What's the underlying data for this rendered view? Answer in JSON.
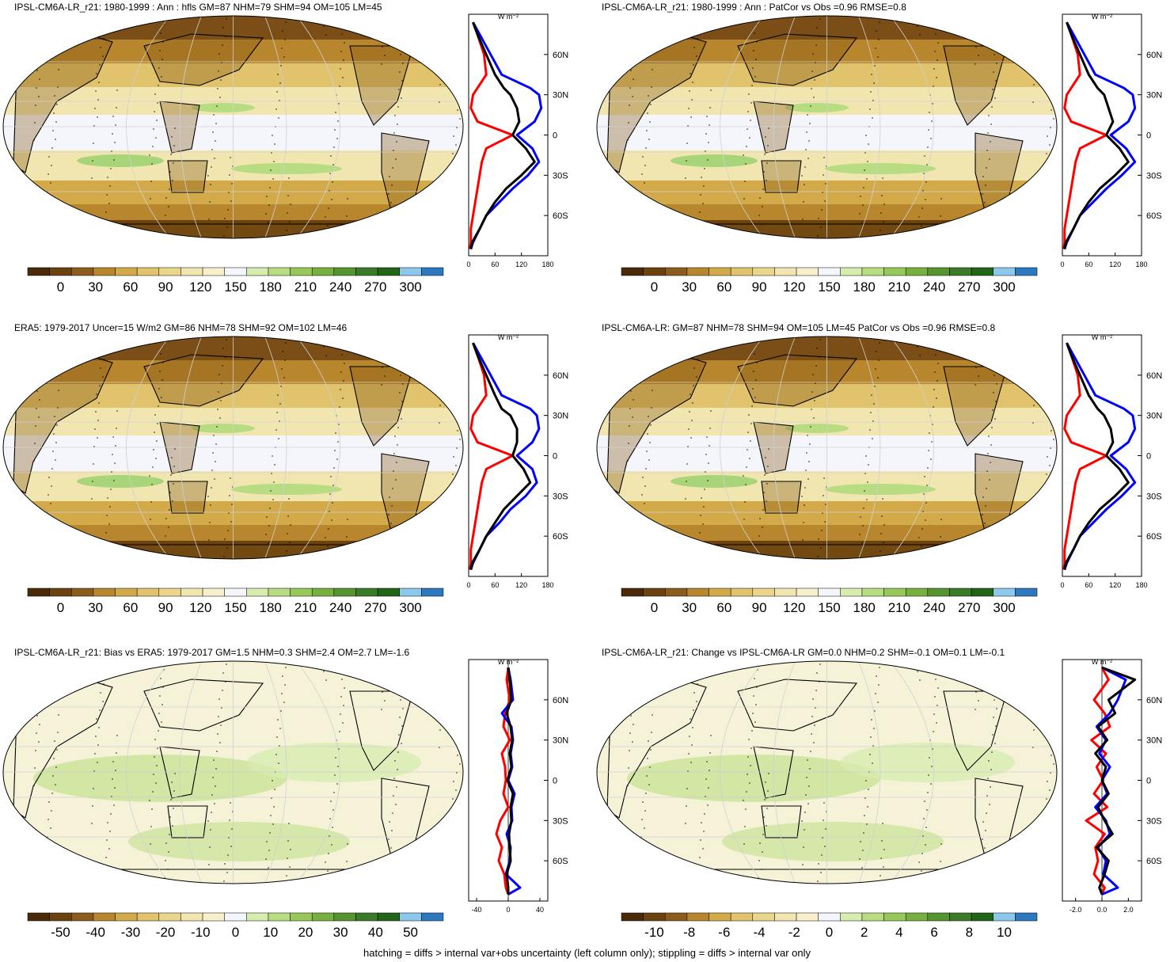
{
  "footer": "hatching = diffs > internal var+obs uncertainty (left column only); stippling = diffs > internal var only",
  "unit_label": "W m⁻²",
  "lat_ticks": [
    "60N",
    "30N",
    "0",
    "30S",
    "60S"
  ],
  "colors": {
    "mean_scale": [
      "#4a2a08",
      "#6b4210",
      "#8c5c1e",
      "#b8862c",
      "#d3aa4a",
      "#e0c36c",
      "#ead58c",
      "#f2e6b0",
      "#f8f0cc",
      "#f4f6fb",
      "#d8ecb0",
      "#b8dc82",
      "#98c85a",
      "#78b040",
      "#559430",
      "#3a7a28",
      "#226418",
      "#8cc8ec",
      "#2e78c0"
    ],
    "model": "#000000",
    "obs_ocean": "#0000ff",
    "obs_land": "#ff0000"
  },
  "panels": [
    {
      "id": "model-mean",
      "title": "IPSL-CM6A-LR_r21: 1980-1999 : Ann : hfls GM=87 NHM=79 SHM=94 OM=105 LM=45",
      "colorbar_labels": [
        "0",
        "30",
        "60",
        "90",
        "120",
        "150",
        "180",
        "210",
        "240",
        "270",
        "300"
      ],
      "zonal_xticks": [
        "0",
        "60",
        "120",
        "180"
      ]
    },
    {
      "id": "model-mean-patcor",
      "title": "IPSL-CM6A-LR_r21: 1980-1999 : Ann : PatCor vs Obs =0.96 RMSE=0.8",
      "colorbar_labels": [
        "0",
        "30",
        "60",
        "90",
        "120",
        "150",
        "180",
        "210",
        "240",
        "270",
        "300"
      ],
      "zonal_xticks": [
        "0",
        "60",
        "120",
        "180"
      ]
    },
    {
      "id": "era5",
      "title": "ERA5: 1979-2017 Uncer=15 W/m2 GM=86 NHM=78 SHM=92 OM=102 LM=46",
      "colorbar_labels": [
        "0",
        "30",
        "60",
        "90",
        "120",
        "150",
        "180",
        "210",
        "240",
        "270",
        "300"
      ],
      "zonal_xticks": [
        "0",
        "60",
        "120",
        "180"
      ]
    },
    {
      "id": "ipsl-ensemble",
      "title": "IPSL-CM6A-LR: GM=87 NHM=78 SHM=94 OM=105 LM=45 PatCor vs Obs =0.96 RMSE=0.8",
      "colorbar_labels": [
        "0",
        "30",
        "60",
        "90",
        "120",
        "150",
        "180",
        "210",
        "240",
        "270",
        "300"
      ],
      "zonal_xticks": [
        "0",
        "60",
        "120",
        "180"
      ]
    },
    {
      "id": "bias",
      "title": "IPSL-CM6A-LR_r21: Bias vs ERA5: 1979-2017 GM=1.5 NHM=0.3 SHM=2.4 OM=2.7 LM=-1.6",
      "colorbar_labels": [
        "-50",
        "-40",
        "-30",
        "-20",
        "-10",
        "0",
        "10",
        "20",
        "30",
        "40",
        "50"
      ],
      "zonal_xticks": [
        "-40",
        "0",
        "40"
      ]
    },
    {
      "id": "change",
      "title": "IPSL-CM6A-LR_r21: Change vs IPSL-CM6A-LR GM=0.0 NHM=0.2 SHM=-0.1 OM=0.1 LM=-0.1",
      "colorbar_labels": [
        "-10",
        "-8",
        "-6",
        "-4",
        "-2",
        "0",
        "2",
        "4",
        "6",
        "8",
        "10"
      ],
      "zonal_xticks": [
        "-2.0",
        "0.0",
        "2.0"
      ]
    }
  ],
  "chart_data": [
    {
      "type": "line",
      "title": "IPSL-CM6A-LR_r21: 1980-1999 : Ann : hfls GM=87 NHM=79 SHM=94 OM=105 LM=45",
      "xlabel": "W m⁻²",
      "xlim": [
        0,
        180
      ],
      "ylim": [
        -90,
        90
      ],
      "x_ticks": [
        0,
        60,
        120,
        180
      ],
      "y_ticks": [
        "60N",
        "30N",
        "0",
        "30S",
        "60S"
      ],
      "y": [
        84,
        75,
        60,
        45,
        35,
        30,
        20,
        10,
        0,
        -10,
        -20,
        -30,
        -40,
        -50,
        -60,
        -70,
        -80,
        -85
      ],
      "series": [
        {
          "values": [
            10,
            20,
            40,
            60,
            80,
            95,
            110,
            115,
            100,
            130,
            150,
            120,
            85,
            60,
            40,
            25,
            8,
            5
          ]
        },
        {
          "values": [
            10,
            25,
            50,
            75,
            140,
            160,
            165,
            150,
            110,
            145,
            160,
            135,
            100,
            70,
            40,
            25,
            10,
            5
          ]
        },
        {
          "values": [
            10,
            20,
            35,
            40,
            20,
            10,
            5,
            20,
            100,
            40,
            30,
            25,
            20,
            15,
            10,
            5,
            5,
            3
          ]
        }
      ]
    },
    {
      "type": "line",
      "title": "IPSL-CM6A-LR_r21: 1980-1999 : Ann : PatCor vs Obs =0.96 RMSE=0.8",
      "xlabel": "W m⁻²",
      "xlim": [
        0,
        180
      ],
      "ylim": [
        -90,
        90
      ],
      "x_ticks": [
        0,
        60,
        120,
        180
      ],
      "y_ticks": [
        "60N",
        "30N",
        "0",
        "30S",
        "60S"
      ],
      "y": [
        84,
        75,
        60,
        45,
        35,
        30,
        20,
        10,
        0,
        -10,
        -20,
        -30,
        -40,
        -50,
        -60,
        -70,
        -80,
        -85
      ],
      "series": [
        {
          "values": [
            10,
            20,
            40,
            60,
            80,
            95,
            105,
            115,
            100,
            130,
            150,
            120,
            85,
            60,
            40,
            25,
            8,
            5
          ]
        },
        {
          "values": [
            10,
            25,
            50,
            75,
            140,
            160,
            165,
            150,
            110,
            145,
            165,
            135,
            100,
            70,
            40,
            25,
            10,
            5
          ]
        },
        {
          "values": [
            10,
            20,
            35,
            40,
            20,
            10,
            5,
            20,
            100,
            40,
            30,
            25,
            20,
            15,
            10,
            5,
            5,
            3
          ]
        }
      ]
    },
    {
      "type": "line",
      "title": "ERA5: 1979-2017 Uncer=15 W/m2 GM=86 NHM=78 SHM=92 OM=102 LM=46",
      "xlabel": "W m⁻²",
      "xlim": [
        0,
        180
      ],
      "ylim": [
        -90,
        90
      ],
      "x_ticks": [
        0,
        60,
        120,
        180
      ],
      "y_ticks": [
        "60N",
        "30N",
        "0",
        "30S",
        "60S"
      ],
      "y": [
        84,
        75,
        60,
        45,
        35,
        30,
        20,
        10,
        0,
        -10,
        -20,
        -30,
        -40,
        -50,
        -60,
        -70,
        -80,
        -85
      ],
      "series": [
        {
          "values": [
            10,
            20,
            40,
            60,
            75,
            95,
            110,
            110,
            100,
            125,
            140,
            110,
            80,
            60,
            40,
            25,
            8,
            5
          ]
        },
        {
          "values": [
            10,
            25,
            50,
            75,
            140,
            155,
            160,
            145,
            110,
            145,
            155,
            130,
            95,
            70,
            40,
            25,
            10,
            5
          ]
        },
        {
          "values": [
            10,
            20,
            35,
            40,
            20,
            10,
            5,
            20,
            100,
            40,
            30,
            25,
            20,
            15,
            10,
            5,
            5,
            3
          ]
        }
      ]
    },
    {
      "type": "line",
      "title": "IPSL-CM6A-LR: GM=87 NHM=78 SHM=94 OM=105 LM=45 PatCor vs Obs =0.96 RMSE=0.8",
      "xlabel": "W m⁻²",
      "xlim": [
        0,
        180
      ],
      "ylim": [
        -90,
        90
      ],
      "x_ticks": [
        0,
        60,
        120,
        180
      ],
      "y_ticks": [
        "60N",
        "30N",
        "0",
        "30S",
        "60S"
      ],
      "y": [
        84,
        75,
        60,
        45,
        35,
        30,
        20,
        10,
        0,
        -10,
        -20,
        -30,
        -40,
        -50,
        -60,
        -70,
        -80,
        -85
      ],
      "series": [
        {
          "values": [
            10,
            20,
            40,
            60,
            80,
            95,
            110,
            115,
            100,
            130,
            150,
            120,
            85,
            60,
            40,
            25,
            8,
            5
          ]
        },
        {
          "values": [
            10,
            25,
            50,
            75,
            140,
            160,
            165,
            150,
            110,
            145,
            165,
            135,
            100,
            70,
            40,
            25,
            10,
            5
          ]
        },
        {
          "values": [
            10,
            20,
            35,
            40,
            20,
            10,
            5,
            20,
            100,
            40,
            30,
            25,
            20,
            15,
            10,
            5,
            5,
            3
          ]
        }
      ]
    },
    {
      "type": "line",
      "title": "IPSL-CM6A-LR_r21: Bias vs ERA5: 1979-2017 GM=1.5 NHM=0.3 SHM=2.4 OM=2.7 LM=-1.6",
      "xlabel": "W m⁻²",
      "xlim": [
        -50,
        50
      ],
      "ylim": [
        -90,
        90
      ],
      "x_ticks": [
        -40,
        0,
        40
      ],
      "y_ticks": [
        "60N",
        "30N",
        "0",
        "30S",
        "60S"
      ],
      "y": [
        84,
        75,
        60,
        50,
        40,
        30,
        20,
        10,
        0,
        -10,
        -20,
        -30,
        -40,
        -50,
        -60,
        -70,
        -80,
        -85
      ],
      "series": [
        {
          "values": [
            0,
            2,
            4,
            -2,
            3,
            5,
            2,
            4,
            -1,
            6,
            3,
            4,
            1,
            2,
            3,
            -2,
            0,
            0
          ]
        },
        {
          "values": [
            0,
            3,
            6,
            -8,
            4,
            6,
            3,
            5,
            0,
            8,
            4,
            5,
            -2,
            3,
            2,
            -3,
            15,
            0
          ]
        },
        {
          "values": [
            0,
            -2,
            2,
            -4,
            -6,
            2,
            -8,
            -4,
            -3,
            -6,
            0,
            -10,
            -15,
            -8,
            -12,
            -5,
            -3,
            0
          ]
        }
      ]
    },
    {
      "type": "line",
      "title": "IPSL-CM6A-LR_r21: Change vs IPSL-CM6A-LR GM=0.0 NHM=0.2 SHM=-0.1 OM=0.1 LM=-0.1",
      "xlabel": "W m⁻²",
      "xlim": [
        -3,
        3
      ],
      "ylim": [
        -90,
        90
      ],
      "x_ticks": [
        -2.0,
        0.0,
        2.0
      ],
      "y_ticks": [
        "60N",
        "30N",
        "0",
        "30S",
        "60S"
      ],
      "y": [
        84,
        75,
        60,
        50,
        40,
        30,
        20,
        10,
        0,
        -10,
        -20,
        -30,
        -40,
        -50,
        -60,
        -70,
        -80,
        -85
      ],
      "series": [
        {
          "values": [
            0,
            2.5,
            0.5,
            1.0,
            -0.3,
            0.4,
            -0.5,
            0.3,
            0.0,
            0.5,
            -0.3,
            0.2,
            0.8,
            -0.4,
            0.5,
            0.2,
            -0.2,
            0.0
          ]
        },
        {
          "values": [
            0,
            1.8,
            1.2,
            0.6,
            -0.4,
            0.3,
            -0.2,
            0.6,
            0.0,
            0.4,
            -0.5,
            0.3,
            0.6,
            -0.3,
            0.3,
            0.1,
            1.2,
            0.0
          ]
        },
        {
          "values": [
            0,
            0.5,
            -0.6,
            0.2,
            0.6,
            -0.8,
            0.3,
            -0.4,
            0.1,
            -0.6,
            0.4,
            -1.2,
            0.2,
            -0.5,
            -0.3,
            -0.6,
            0.2,
            0.0
          ]
        }
      ]
    }
  ]
}
